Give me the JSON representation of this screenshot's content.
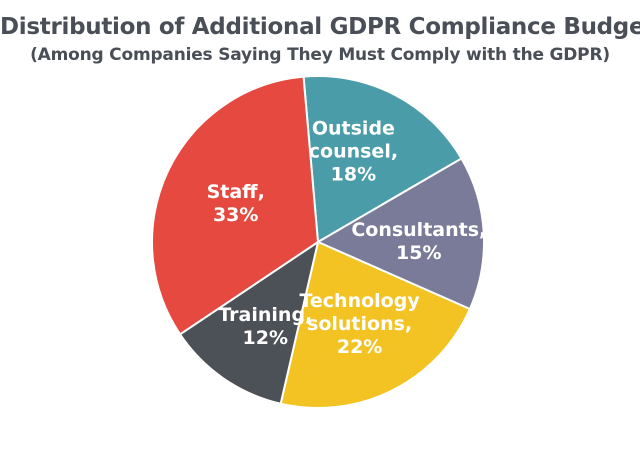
{
  "chart_data": {
    "type": "pie",
    "title": "Distribution of Additional GDPR Compliance Budget",
    "subtitle": "(Among Companies Saying They Must Comply with the GDPR)",
    "slices": [
      {
        "label_lines": [
          "Outside",
          "counsel,",
          "18%"
        ],
        "name": "Outside counsel",
        "value": 18,
        "color": "#4a9ca8",
        "text_color": "#ffffff"
      },
      {
        "label_lines": [
          "Consultants,",
          "15%"
        ],
        "name": "Consultants",
        "value": 15,
        "color": "#7a7a99",
        "text_color": "#ffffff"
      },
      {
        "label_lines": [
          "Technology",
          "solutions,",
          "22%"
        ],
        "name": "Technology solutions",
        "value": 22,
        "color": "#f2c322",
        "text_color": "#4a4e57"
      },
      {
        "label_lines": [
          "Training,",
          "12%"
        ],
        "name": "Training",
        "value": 12,
        "color": "#4c5057",
        "text_color": "#ffffff"
      },
      {
        "label_lines": [
          "Staff,",
          "33%"
        ],
        "name": "Staff",
        "value": 33,
        "color": "#e5493f",
        "text_color": "#ffffff"
      }
    ]
  }
}
